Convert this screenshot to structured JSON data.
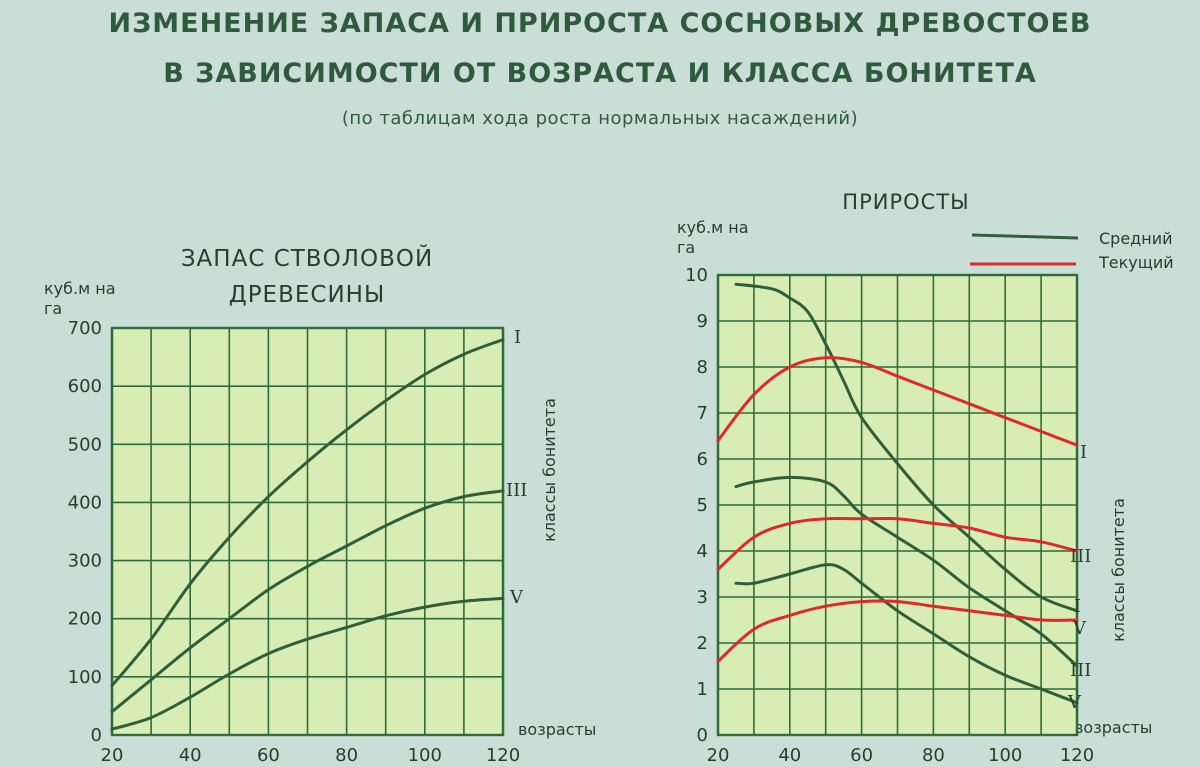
{
  "heading": {
    "line1": "ИЗМЕНЕНИЕ ЗАПАСА И ПРИРОСТА  СОСНОВЫХ ДРЕВОСТОЕВ",
    "line2": "В ЗАВИСИМОСТИ ОТ ВОЗРАСТА И КЛАССА БОНИТЕТА",
    "note": "(по таблицам хода роста нормальных  насаждений)"
  },
  "colors": {
    "background": "#c9ded6",
    "panel": "#d8edb4",
    "grid": "#2f6b3c",
    "green_line": "#2f5e3a",
    "red_line": "#e0282a",
    "text": "#2f5a3c"
  },
  "chart_data": [
    {
      "type": "line",
      "title": "ЗАПАС СТВОЛОВОЙ ДРЕВЕСИНЫ",
      "ylabel": "куб.м на га",
      "xlabel": "возрасты",
      "right_label": "классы  бонитета",
      "xlim": [
        20,
        120
      ],
      "ylim": [
        0,
        700
      ],
      "x_ticks": [
        20,
        40,
        60,
        80,
        100,
        120
      ],
      "y_ticks": [
        0,
        100,
        200,
        300,
        400,
        500,
        600,
        700
      ],
      "grid": true,
      "series": [
        {
          "name": "I",
          "color": "#2f5e3a",
          "x": [
            20,
            30,
            40,
            50,
            60,
            70,
            80,
            90,
            100,
            110,
            120
          ],
          "values": [
            85,
            165,
            260,
            340,
            410,
            470,
            525,
            575,
            620,
            655,
            680
          ]
        },
        {
          "name": "III",
          "color": "#2f5e3a",
          "x": [
            20,
            30,
            40,
            50,
            60,
            70,
            80,
            90,
            100,
            110,
            120
          ],
          "values": [
            40,
            95,
            150,
            200,
            250,
            290,
            325,
            360,
            390,
            410,
            420
          ]
        },
        {
          "name": "V",
          "color": "#2f5e3a",
          "x": [
            20,
            30,
            40,
            50,
            60,
            70,
            80,
            90,
            100,
            110,
            120
          ],
          "values": [
            10,
            30,
            65,
            105,
            140,
            165,
            185,
            205,
            220,
            230,
            235
          ]
        }
      ]
    },
    {
      "type": "line",
      "title": "ПРИРОСТЫ",
      "ylabel": "куб.м на га",
      "xlabel": "возрасты",
      "right_label": "классы  бонитета",
      "xlim": [
        20,
        120
      ],
      "ylim": [
        0,
        10
      ],
      "x_ticks": [
        20,
        40,
        60,
        80,
        100,
        120
      ],
      "y_ticks": [
        0,
        1,
        2,
        3,
        4,
        5,
        6,
        7,
        8,
        9,
        10
      ],
      "grid": true,
      "legend": {
        "placement": "top-right",
        "items": [
          {
            "label": "Средний",
            "color": "#2f5e3a"
          },
          {
            "label": "Текущий",
            "color": "#e0282a"
          }
        ]
      },
      "series": [
        {
          "name": "I",
          "kind": "Средний",
          "color": "#2f5e3a",
          "x": [
            25,
            35,
            40,
            45,
            50,
            55,
            60,
            70,
            80,
            90,
            100,
            110,
            120
          ],
          "values": [
            9.8,
            9.7,
            9.5,
            9.2,
            8.5,
            7.7,
            6.9,
            5.9,
            5.0,
            4.3,
            3.6,
            3.0,
            2.7
          ]
        },
        {
          "name": "I",
          "kind": "Текущий",
          "color": "#e0282a",
          "x": [
            20,
            30,
            40,
            50,
            60,
            70,
            80,
            90,
            100,
            110,
            120
          ],
          "values": [
            6.4,
            7.4,
            8.0,
            8.2,
            8.1,
            7.8,
            7.5,
            7.2,
            6.9,
            6.6,
            6.3
          ]
        },
        {
          "name": "III",
          "kind": "Средний",
          "color": "#2f5e3a",
          "x": [
            25,
            30,
            40,
            50,
            55,
            60,
            70,
            80,
            90,
            100,
            110,
            120
          ],
          "values": [
            5.4,
            5.5,
            5.6,
            5.5,
            5.2,
            4.8,
            4.3,
            3.8,
            3.2,
            2.7,
            2.2,
            1.5
          ]
        },
        {
          "name": "III",
          "kind": "Текущий",
          "color": "#e0282a",
          "x": [
            20,
            30,
            40,
            50,
            60,
            70,
            80,
            90,
            100,
            110,
            120
          ],
          "values": [
            3.6,
            4.3,
            4.6,
            4.7,
            4.7,
            4.7,
            4.6,
            4.5,
            4.3,
            4.2,
            4.0
          ]
        },
        {
          "name": "V",
          "kind": "Средний",
          "color": "#2f5e3a",
          "x": [
            25,
            30,
            40,
            50,
            55,
            60,
            70,
            80,
            90,
            100,
            110,
            120
          ],
          "values": [
            3.3,
            3.3,
            3.5,
            3.7,
            3.6,
            3.3,
            2.7,
            2.2,
            1.7,
            1.3,
            1.0,
            0.7
          ]
        },
        {
          "name": "V",
          "kind": "Текущий",
          "color": "#e0282a",
          "x": [
            20,
            30,
            40,
            50,
            60,
            70,
            80,
            90,
            100,
            110,
            120
          ],
          "values": [
            1.6,
            2.3,
            2.6,
            2.8,
            2.9,
            2.9,
            2.8,
            2.7,
            2.6,
            2.5,
            2.5
          ]
        }
      ]
    }
  ]
}
